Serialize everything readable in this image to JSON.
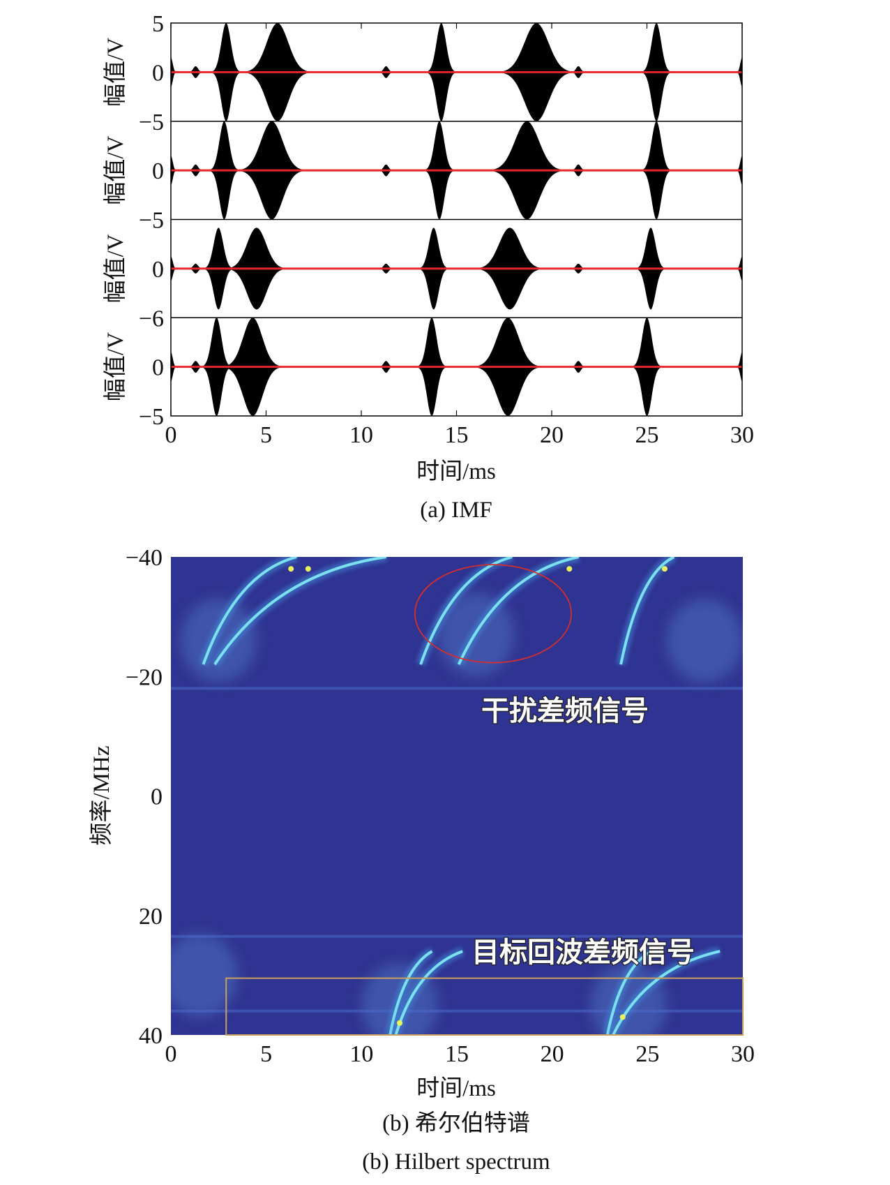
{
  "chart_data": [
    {
      "type": "line",
      "caption": "(a) IMF",
      "xlabel": "时间/ms",
      "xlim": [
        0,
        30
      ],
      "x_ticks": [
        "0",
        "5",
        "10",
        "15",
        "20",
        "25",
        "30"
      ],
      "panels": [
        {
          "ylabel": "幅值/V",
          "ytick_labels": [
            "5",
            "0",
            "−5"
          ],
          "ylim": [
            -5,
            5
          ],
          "bursts": [
            {
              "t": 0,
              "a": 1.5,
              "w": 0.15
            },
            {
              "t": 1.3,
              "a": 0.6,
              "w": 0.2
            },
            {
              "t": 2.9,
              "a": 5,
              "w": 0.4
            },
            {
              "t": 5.6,
              "a": 5,
              "w": 0.9
            },
            {
              "t": 11.3,
              "a": 0.6,
              "w": 0.2
            },
            {
              "t": 14.2,
              "a": 5,
              "w": 0.4
            },
            {
              "t": 19.2,
              "a": 5,
              "w": 1.0
            },
            {
              "t": 21.4,
              "a": 0.6,
              "w": 0.2
            },
            {
              "t": 25.5,
              "a": 5,
              "w": 0.4
            },
            {
              "t": 30,
              "a": 1.5,
              "w": 0.15
            }
          ]
        },
        {
          "ylabel": "幅值/V",
          "ytick_labels": [
            "0",
            "−5"
          ],
          "ylim": [
            -5,
            5
          ],
          "bursts": [
            {
              "t": 0,
              "a": 1.5,
              "w": 0.15
            },
            {
              "t": 1.3,
              "a": 0.6,
              "w": 0.2
            },
            {
              "t": 2.8,
              "a": 5,
              "w": 0.4
            },
            {
              "t": 5.3,
              "a": 5,
              "w": 0.9
            },
            {
              "t": 11.3,
              "a": 0.6,
              "w": 0.2
            },
            {
              "t": 14.1,
              "a": 5,
              "w": 0.4
            },
            {
              "t": 18.7,
              "a": 5,
              "w": 1.0
            },
            {
              "t": 21.4,
              "a": 0.6,
              "w": 0.2
            },
            {
              "t": 25.5,
              "a": 5,
              "w": 0.4
            },
            {
              "t": 30,
              "a": 1.5,
              "w": 0.15
            }
          ]
        },
        {
          "ylabel": "幅值/V",
          "ytick_labels": [
            "0",
            "−6"
          ],
          "ylim": [
            -6,
            6
          ],
          "bursts": [
            {
              "t": 0,
              "a": 1.5,
              "w": 0.15
            },
            {
              "t": 1.3,
              "a": 0.6,
              "w": 0.2
            },
            {
              "t": 2.5,
              "a": 5,
              "w": 0.4
            },
            {
              "t": 4.5,
              "a": 5,
              "w": 0.8
            },
            {
              "t": 11.3,
              "a": 0.6,
              "w": 0.2
            },
            {
              "t": 13.8,
              "a": 5,
              "w": 0.4
            },
            {
              "t": 17.8,
              "a": 5,
              "w": 0.9
            },
            {
              "t": 21.4,
              "a": 0.6,
              "w": 0.2
            },
            {
              "t": 25.2,
              "a": 5,
              "w": 0.4
            },
            {
              "t": 30,
              "a": 1.5,
              "w": 0.15
            }
          ]
        },
        {
          "ylabel": "幅值/V",
          "ytick_labels": [
            "0",
            "−5"
          ],
          "ylim": [
            -5,
            5
          ],
          "bursts": [
            {
              "t": 0,
              "a": 1.5,
              "w": 0.15
            },
            {
              "t": 1.3,
              "a": 0.6,
              "w": 0.2
            },
            {
              "t": 2.4,
              "a": 5,
              "w": 0.4
            },
            {
              "t": 4.3,
              "a": 5,
              "w": 0.8
            },
            {
              "t": 11.3,
              "a": 0.6,
              "w": 0.2
            },
            {
              "t": 13.7,
              "a": 5,
              "w": 0.4
            },
            {
              "t": 17.7,
              "a": 5,
              "w": 0.9
            },
            {
              "t": 21.4,
              "a": 0.6,
              "w": 0.2
            },
            {
              "t": 25.0,
              "a": 5,
              "w": 0.4
            },
            {
              "t": 30,
              "a": 1.5,
              "w": 0.15
            }
          ]
        }
      ],
      "zero_line_color": "#e8252a"
    },
    {
      "type": "heatmap",
      "caption_cn": "(b) 希尔伯特谱",
      "caption_en": "(b) Hilbert spectrum",
      "xlabel": "时间/ms",
      "ylabel": "频率/MHz",
      "xlim": [
        0,
        30
      ],
      "ylim": [
        -40,
        40
      ],
      "x_ticks": [
        "0",
        "5",
        "10",
        "15",
        "20",
        "25",
        "30"
      ],
      "y_ticks": [
        "−40",
        "−20",
        "0",
        "20",
        "40"
      ],
      "y_tick_values": [
        -40,
        -20,
        0,
        20,
        40
      ],
      "background_color": "#2f3391",
      "annotations": {
        "interference": "干扰差频信号",
        "target_echo": "目标回波差频信号"
      },
      "interference_ellipse": {
        "center_t": 16.9,
        "center_f": -30.5,
        "rx_t": 4.1,
        "ry_f": 8.2
      },
      "target_box": {
        "t0": 2.9,
        "t1": 30,
        "f0": 30.5,
        "f1": 40
      },
      "ridges_interference": [
        {
          "t0": 1.7,
          "t1": 6.6,
          "f_start": -22,
          "f_end": -40
        },
        {
          "t0": 2.3,
          "t1": 11.3,
          "f_start": -22,
          "f_end": -40
        },
        {
          "t0": 13.1,
          "t1": 17.9,
          "f_start": -22,
          "f_end": -40
        },
        {
          "t0": 15.1,
          "t1": 21.4,
          "f_start": -22,
          "f_end": -40
        },
        {
          "t0": 23.6,
          "t1": 26.4,
          "f_start": -22,
          "f_end": -40
        }
      ],
      "ridges_target": [
        {
          "t0": 11.5,
          "t1": 13.7,
          "f_start": 40,
          "f_end": 26
        },
        {
          "t0": 11.8,
          "t1": 15.3,
          "f_start": 40,
          "f_end": 26
        },
        {
          "t0": 22.9,
          "t1": 25.2,
          "f_start": 40,
          "f_end": 26
        },
        {
          "t0": 23.2,
          "t1": 28.8,
          "f_start": 40,
          "f_end": 26
        }
      ],
      "band_freqs": [
        -18,
        23.5,
        36
      ]
    }
  ],
  "colors": {
    "signal": "#000000",
    "zero_line": "#e8252a",
    "ellipse": "#d62d2d",
    "box": "#c9a15a",
    "ridge_core": "#7be0f0",
    "ridge_hot": "#e9f25a"
  }
}
